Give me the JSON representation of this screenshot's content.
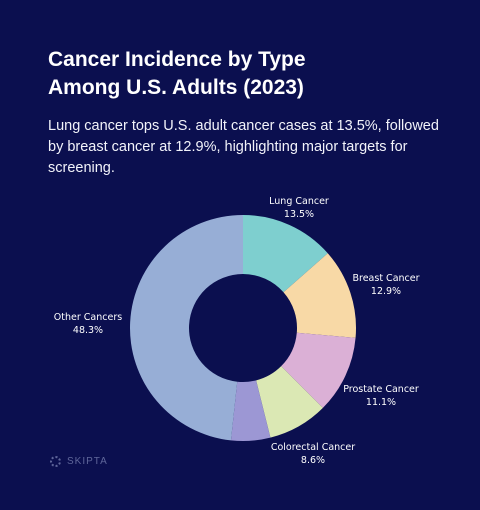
{
  "header": {
    "title_line1": "Cancer Incidence by Type",
    "title_line2": "Among U.S. Adults (2023)",
    "subtitle": "Lung cancer tops U.S. adult cancer cases at 13.5%, followed by breast cancer at 12.9%, highlighting major targets for screening."
  },
  "brand": {
    "name": "SKIPTA",
    "icon": "skipta-logo-icon"
  },
  "chart_data": {
    "type": "pie",
    "donut": true,
    "categories": [
      "Lung Cancer",
      "Breast Cancer",
      "Prostate Cancer",
      "Colorectal Cancer",
      "Other Cancers"
    ],
    "values": [
      13.5,
      12.9,
      11.1,
      8.6,
      48.3
    ],
    "value_labels": [
      "13.5%",
      "12.9%",
      "11.1%",
      "8.6%",
      "48.3%"
    ],
    "colors": [
      "#7ecfcf",
      "#f8d9a6",
      "#dbb0d6",
      "#dbe8b4",
      "#9c97d4",
      "#97aed6"
    ],
    "background": "#0b0f4f",
    "label_color": "#ffffff"
  }
}
